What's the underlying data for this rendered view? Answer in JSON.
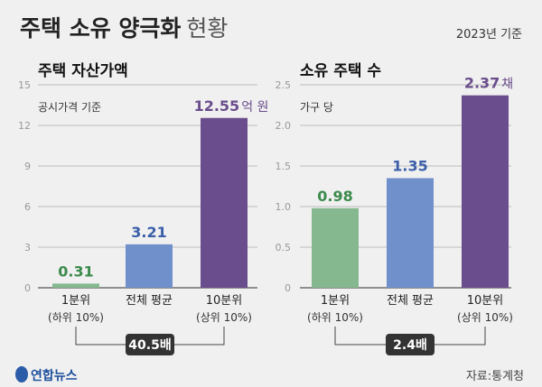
{
  "header": {
    "title_bold": "주택 소유 양극화",
    "title_light": "현황",
    "date_note": "2023년 기준"
  },
  "footer": {
    "logo_text": "연합뉴스",
    "source": "자료:통계청"
  },
  "colors": {
    "background": "#f0f0f0",
    "bottom": "#85b88f",
    "average": "#7090cc",
    "top": "#6a4d8c",
    "bottom_label": "#3c8a4c",
    "average_label": "#3a5ea8",
    "top_label": "#6a4d8c",
    "ratio_badge": "#333333"
  },
  "chart_data": [
    {
      "type": "bar",
      "title": "주택 자산가액",
      "subtitle": "공시가격 기준",
      "categories": [
        [
          "1분위",
          "(하위 10%)"
        ],
        [
          "전체 평균",
          ""
        ],
        [
          "10분위",
          "(상위 10%)"
        ]
      ],
      "values": [
        0.31,
        3.21,
        12.55
      ],
      "value_labels": [
        "0.31",
        "3.21",
        "12.55"
      ],
      "unit": "억 원",
      "ylim": [
        0,
        15
      ],
      "yticks": [
        "0",
        "3",
        "6",
        "9",
        "12",
        "15"
      ],
      "ytick_values": [
        0,
        3,
        6,
        9,
        12,
        15
      ],
      "grid": true,
      "ratio_label": "40.5배"
    },
    {
      "type": "bar",
      "title": "소유 주택 수",
      "subtitle": "가구 당",
      "categories": [
        [
          "1분위",
          "(하위 10%)"
        ],
        [
          "전체 평균",
          ""
        ],
        [
          "10분위",
          "(상위 10%)"
        ]
      ],
      "values": [
        0.98,
        1.35,
        2.37
      ],
      "value_labels": [
        "0.98",
        "1.35",
        "2.37"
      ],
      "unit": "채",
      "ylim": [
        0,
        2.5
      ],
      "yticks": [
        "0",
        "0.5",
        "1.0",
        "1.5",
        "2.0",
        "2.5"
      ],
      "ytick_values": [
        0,
        0.5,
        1.0,
        1.5,
        2.0,
        2.5
      ],
      "grid": true,
      "ratio_label": "2.4배"
    }
  ]
}
